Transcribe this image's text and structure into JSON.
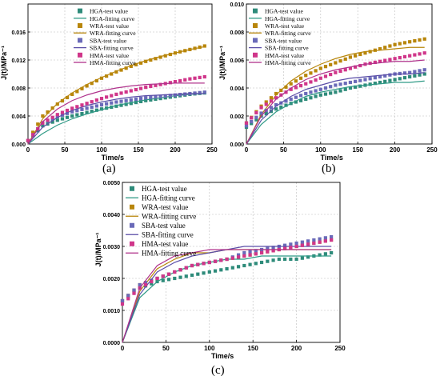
{
  "panel_labels": [
    "(a)",
    "(b)",
    "(c)"
  ],
  "legend_labels": [
    "HGA-test value",
    "HGA-fitting curve",
    "WRA-test value",
    "WRA-fitting curve",
    "SBA-test value",
    "SBA-fitting curve",
    "HMA-test value",
    "HMA-fitting curve"
  ],
  "colors": {
    "HGA_test": "#2e8b7a",
    "HGA_fit": "#2f9a86",
    "WRA_test": "#b8860b",
    "WRA_fit": "#b8860b",
    "SBA_test": "#6a6ab8",
    "SBA_fit": "#5b4ea8",
    "HMA_test": "#d0368a",
    "HMA_fit": "#b0338c"
  },
  "chart_data": [
    {
      "type": "line",
      "panel": "(a)",
      "xlabel": "Time/s",
      "ylabel": "J(t)/MPa⁻¹",
      "xlim": [
        0,
        250
      ],
      "ylim": [
        0,
        0.02
      ],
      "xticks": [
        0,
        50,
        100,
        150,
        200,
        250
      ],
      "xtick_labels": [
        "0",
        "50",
        "100",
        "150",
        "200",
        "250"
      ],
      "yticks": [
        0,
        0.004,
        0.008,
        0.012,
        0.016
      ],
      "ytick_labels": [
        "0.000",
        "0.004",
        "0.008",
        "0.012",
        "0.016"
      ],
      "grid": true,
      "legend": "top-right",
      "x": [
        0,
        20,
        40,
        60,
        80,
        100,
        120,
        140,
        160,
        180,
        200,
        220,
        240
      ],
      "series": [
        {
          "name": "HGA-test value",
          "kind": "test",
          "values": [
            0.0005,
            0.0026,
            0.0034,
            0.004,
            0.0045,
            0.005,
            0.0054,
            0.0058,
            0.0062,
            0.0065,
            0.0068,
            0.0071,
            0.0073
          ]
        },
        {
          "name": "HGA-fitting curve",
          "kind": "fit",
          "values": [
            0,
            0.0015,
            0.0027,
            0.0036,
            0.0043,
            0.0049,
            0.0055,
            0.0059,
            0.0063,
            0.0066,
            0.0069,
            0.0071,
            0.0072
          ]
        },
        {
          "name": "WRA-test value",
          "kind": "test",
          "values": [
            0.0005,
            0.004,
            0.0057,
            0.0071,
            0.0083,
            0.0094,
            0.0103,
            0.0111,
            0.0118,
            0.0124,
            0.013,
            0.0135,
            0.014
          ]
        },
        {
          "name": "WRA-fitting curve",
          "kind": "fit",
          "values": [
            0,
            0.0036,
            0.0058,
            0.0073,
            0.0085,
            0.0095,
            0.0104,
            0.0112,
            0.0119,
            0.0125,
            0.013,
            0.0135,
            0.0139
          ]
        },
        {
          "name": "SBA-test value",
          "kind": "test",
          "values": [
            0.0005,
            0.003,
            0.0039,
            0.0046,
            0.0051,
            0.0056,
            0.006,
            0.0063,
            0.0066,
            0.0068,
            0.007,
            0.0072,
            0.0074
          ]
        },
        {
          "name": "SBA-fitting curve",
          "kind": "fit",
          "values": [
            0,
            0.0024,
            0.0038,
            0.0048,
            0.0055,
            0.006,
            0.0064,
            0.0067,
            0.0069,
            0.007,
            0.0071,
            0.0072,
            0.0072
          ]
        },
        {
          "name": "HMA-test value",
          "kind": "test",
          "values": [
            0.0005,
            0.003,
            0.0042,
            0.0051,
            0.0058,
            0.0065,
            0.0071,
            0.0076,
            0.0081,
            0.0085,
            0.0089,
            0.0093,
            0.0096
          ]
        },
        {
          "name": "HMA-fitting curve",
          "kind": "fit",
          "values": [
            0,
            0.0032,
            0.005,
            0.0062,
            0.007,
            0.0076,
            0.008,
            0.0083,
            0.0085,
            0.0086,
            0.0087,
            0.0087,
            0.0087
          ]
        }
      ]
    },
    {
      "type": "line",
      "panel": "(b)",
      "xlabel": "Time/s",
      "ylabel": "J(t)/MPa⁻¹",
      "xlim": [
        0,
        250
      ],
      "ylim": [
        0,
        0.01
      ],
      "xticks": [
        0,
        50,
        100,
        150,
        200,
        250
      ],
      "xtick_labels": [
        "0",
        "50",
        "100",
        "150",
        "200",
        "250"
      ],
      "yticks": [
        0,
        0.002,
        0.004,
        0.006,
        0.008,
        0.01
      ],
      "ytick_labels": [
        "0.000",
        "0.002",
        "0.004",
        "0.006",
        "0.008",
        "0.010"
      ],
      "grid": true,
      "legend": "top-left",
      "x": [
        0,
        20,
        40,
        60,
        80,
        100,
        120,
        140,
        160,
        180,
        200,
        220,
        240
      ],
      "series": [
        {
          "name": "HGA-test value",
          "kind": "test",
          "values": [
            0.0012,
            0.002,
            0.0025,
            0.0029,
            0.0032,
            0.0035,
            0.0037,
            0.004,
            0.0042,
            0.0044,
            0.0046,
            0.0048,
            0.005
          ]
        },
        {
          "name": "HGA-fitting curve",
          "kind": "fit",
          "values": [
            0,
            0.0014,
            0.0023,
            0.0029,
            0.0034,
            0.0037,
            0.0039,
            0.0041,
            0.0042,
            0.0043,
            0.0044,
            0.0044,
            0.0045
          ]
        },
        {
          "name": "WRA-test value",
          "kind": "test",
          "values": [
            0.0015,
            0.0027,
            0.0036,
            0.0043,
            0.0049,
            0.0054,
            0.0058,
            0.0062,
            0.0065,
            0.0068,
            0.0071,
            0.0073,
            0.0075
          ]
        },
        {
          "name": "WRA-fitting curve",
          "kind": "fit",
          "values": [
            0,
            0.0021,
            0.0035,
            0.0045,
            0.0052,
            0.0057,
            0.0061,
            0.0064,
            0.0066,
            0.0067,
            0.0068,
            0.0069,
            0.0069
          ]
        },
        {
          "name": "SBA-test value",
          "kind": "test",
          "values": [
            0.0013,
            0.0022,
            0.0028,
            0.0032,
            0.0036,
            0.0039,
            0.0042,
            0.0044,
            0.0046,
            0.0048,
            0.005,
            0.0051,
            0.0053
          ]
        },
        {
          "name": "SBA-fitting curve",
          "kind": "fit",
          "values": [
            0,
            0.0017,
            0.0027,
            0.0034,
            0.0039,
            0.0042,
            0.0045,
            0.0047,
            0.0048,
            0.0049,
            0.005,
            0.005,
            0.0051
          ]
        },
        {
          "name": "HMA-test value",
          "kind": "test",
          "values": [
            0.0015,
            0.0026,
            0.0033,
            0.0039,
            0.0043,
            0.0047,
            0.0051,
            0.0054,
            0.0057,
            0.0059,
            0.0061,
            0.0063,
            0.0065
          ]
        },
        {
          "name": "HMA-fitting curve",
          "kind": "fit",
          "values": [
            0,
            0.002,
            0.0032,
            0.004,
            0.0046,
            0.005,
            0.0053,
            0.0055,
            0.0057,
            0.0058,
            0.0059,
            0.0059,
            0.006
          ]
        }
      ]
    },
    {
      "type": "line",
      "panel": "(c)",
      "xlabel": "Time/s",
      "ylabel": "J(t)/MPa⁻¹",
      "xlim": [
        0,
        250
      ],
      "ylim": [
        0,
        0.005
      ],
      "xticks": [
        0,
        50,
        100,
        150,
        200,
        250
      ],
      "xtick_labels": [
        "0",
        "50",
        "100",
        "150",
        "200",
        "250"
      ],
      "yticks": [
        0,
        0.001,
        0.002,
        0.003,
        0.004,
        0.005
      ],
      "ytick_labels": [
        "0.0000",
        "0.0010",
        "0.0020",
        "0.0030",
        "0.0040",
        "0.0050"
      ],
      "grid": true,
      "legend": "top-left",
      "x": [
        0,
        20,
        40,
        60,
        80,
        100,
        120,
        140,
        160,
        180,
        200,
        220,
        240
      ],
      "series": [
        {
          "name": "HGA-test value",
          "kind": "test",
          "values": [
            0.0013,
            0.0017,
            0.0019,
            0.002,
            0.0021,
            0.0022,
            0.0023,
            0.0024,
            0.0025,
            0.0026,
            0.0026,
            0.0027,
            0.0028
          ]
        },
        {
          "name": "HGA-fitting curve",
          "kind": "fit",
          "values": [
            0,
            0.0014,
            0.0019,
            0.0022,
            0.0024,
            0.0025,
            0.0026,
            0.0026,
            0.0027,
            0.0027,
            0.0027,
            0.0027,
            0.0027
          ]
        },
        {
          "name": "WRA-test value",
          "kind": "test",
          "values": [
            0.0013,
            0.0018,
            0.002,
            0.0022,
            0.0024,
            0.0025,
            0.0026,
            0.0027,
            0.0028,
            0.0029,
            0.003,
            0.0031,
            0.0032
          ]
        },
        {
          "name": "WRA-fitting curve",
          "kind": "fit",
          "values": [
            0,
            0.0016,
            0.0023,
            0.0026,
            0.0028,
            0.0028,
            0.0029,
            0.0029,
            0.0029,
            0.0029,
            0.0029,
            0.0029,
            0.0029
          ]
        },
        {
          "name": "SBA-test value",
          "kind": "test",
          "values": [
            0.0013,
            0.0018,
            0.002,
            0.0022,
            0.0024,
            0.0025,
            0.0026,
            0.0028,
            0.0029,
            0.003,
            0.0031,
            0.0032,
            0.0033
          ]
        },
        {
          "name": "SBA-fitting curve",
          "kind": "fit",
          "values": [
            0,
            0.0015,
            0.0022,
            0.0025,
            0.0027,
            0.0028,
            0.0029,
            0.003,
            0.003,
            0.003,
            0.003,
            0.003,
            0.003
          ]
        },
        {
          "name": "HMA-test value",
          "kind": "test",
          "values": [
            0.0012,
            0.0017,
            0.002,
            0.0022,
            0.0024,
            0.0025,
            0.0026,
            0.0027,
            0.0028,
            0.0029,
            0.003,
            0.0031,
            0.0032
          ]
        },
        {
          "name": "HMA-fitting curve",
          "kind": "fit",
          "values": [
            0,
            0.0017,
            0.0024,
            0.0027,
            0.0028,
            0.0029,
            0.0029,
            0.0029,
            0.0029,
            0.0029,
            0.0029,
            0.0029,
            0.0029
          ]
        }
      ]
    }
  ]
}
